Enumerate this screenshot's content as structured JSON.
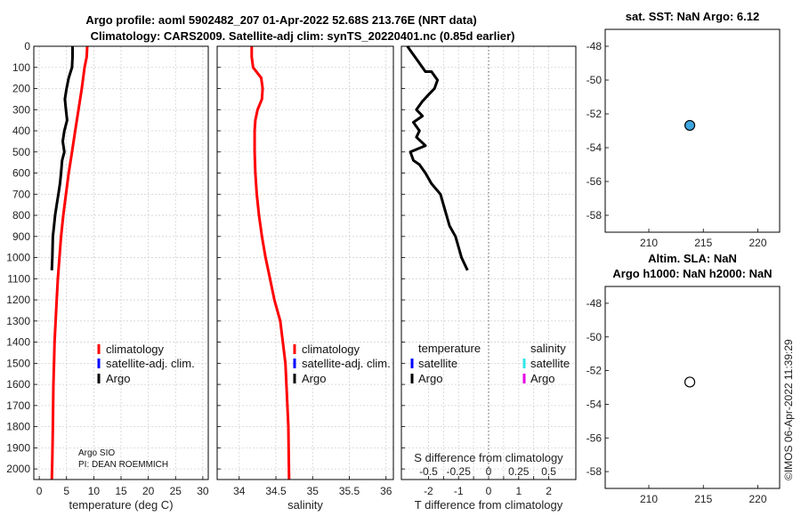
{
  "titles": {
    "line1": "Argo profile: aoml 5902482_207 01-Apr-2022 52.68S 213.76E (NRT data)",
    "line2": "Climatology: CARS2009. Satellite-adj clim: synTS_20220401.nc (0.85d earlier)",
    "sst": "sat. SST: NaN Argo: 6.12",
    "altim1": "Altim. SLA: NaN",
    "altim2": "Argo h1000: NaN h2000: NaN"
  },
  "credits": {
    "argo_center": "Argo SIO",
    "pi": "PI: DEAN ROEMMICH",
    "imos": "©IMOS 06-Apr-2022 11:39:29"
  },
  "legend": {
    "climatology": "climatology",
    "satellite_adj": "satellite-adj. clim.",
    "argo": "Argo",
    "temperature": "temperature",
    "salinity": "salinity",
    "satellite": "satellite"
  },
  "colors": {
    "climatology": "#ff0000",
    "satellite": "#0000ff",
    "argo": "#000000",
    "satellite_t": "#0000ff",
    "satellite_s": "#33e6e6",
    "argo_s": "#e600e6",
    "marker_sst": "#3da5e0"
  },
  "chart_data": [
    {
      "type": "line",
      "xlabel": "temperature (deg C)",
      "ylim": [
        2050,
        0
      ],
      "xlim": [
        -1,
        31
      ],
      "xticks": [
        0,
        5,
        10,
        15,
        20,
        25,
        30
      ],
      "yticks": [
        0,
        100,
        200,
        300,
        400,
        500,
        600,
        700,
        800,
        900,
        1000,
        1100,
        1200,
        1300,
        1400,
        1500,
        1600,
        1700,
        1800,
        1900,
        2000
      ],
      "grid": true,
      "series": [
        {
          "name": "climatology",
          "x": [
            8.8,
            8.7,
            8.3,
            7.8,
            7.2,
            6.6,
            6.0,
            5.4,
            4.9,
            4.4,
            4.0,
            3.7,
            3.4,
            3.2,
            3.0,
            2.8,
            2.7,
            2.6,
            2.5,
            2.4,
            2.3
          ],
          "y": [
            0,
            50,
            100,
            200,
            300,
            400,
            500,
            600,
            700,
            800,
            900,
            1000,
            1100,
            1200,
            1300,
            1400,
            1500,
            1600,
            1800,
            1950,
            2050
          ]
        },
        {
          "name": "Argo",
          "x": [
            6.1,
            6.1,
            6.0,
            5.4,
            5.0,
            4.7,
            4.9,
            5.1,
            4.6,
            4.3,
            4.6,
            4.2,
            4.0,
            3.8,
            3.5,
            3.2,
            2.9,
            2.7,
            2.5,
            2.4,
            2.3
          ],
          "y": [
            0,
            50,
            100,
            150,
            200,
            250,
            300,
            350,
            400,
            450,
            500,
            540,
            600,
            650,
            700,
            750,
            800,
            850,
            900,
            1000,
            1060
          ]
        }
      ]
    },
    {
      "type": "line",
      "xlabel": "salinity",
      "ylim": [
        2050,
        0
      ],
      "xlim": [
        33.7,
        36.1
      ],
      "xticks": [
        34,
        34.5,
        35,
        35.5,
        36
      ],
      "grid": true,
      "series": [
        {
          "name": "climatology",
          "x": [
            34.17,
            34.17,
            34.19,
            34.3,
            34.32,
            34.31,
            34.25,
            34.22,
            34.21,
            34.21,
            34.22,
            34.24,
            34.27,
            34.31,
            34.36,
            34.42,
            34.48,
            34.56,
            34.63,
            34.67,
            34.68
          ],
          "y": [
            0,
            50,
            100,
            150,
            200,
            250,
            300,
            350,
            400,
            500,
            600,
            700,
            800,
            900,
            1000,
            1100,
            1200,
            1300,
            1500,
            1800,
            2050
          ]
        }
      ]
    },
    {
      "type": "line",
      "xlabel": "T difference from climatology",
      "title": "S difference from climatology",
      "ylim": [
        2050,
        0
      ],
      "xlim": [
        -2.9,
        2.9
      ],
      "xticks": [
        -2,
        -1.5,
        -1,
        -0.5,
        0,
        0.5,
        1,
        1.5,
        2
      ],
      "xticklabels": [
        "-2",
        "",
        "-1",
        "",
        "0",
        "",
        "1",
        "",
        "2"
      ],
      "sticks": [
        "-0.5",
        "-0.25",
        "0",
        "0.25",
        "0.5"
      ],
      "grid": true,
      "series": [
        {
          "name": "Argo",
          "x": [
            -2.7,
            -2.6,
            -2.4,
            -2.1,
            -1.9,
            -1.7,
            -1.8,
            -2.0,
            -2.2,
            -2.4,
            -2.2,
            -2.5,
            -2.3,
            -2.4,
            -2.1,
            -2.6,
            -2.5,
            -2.3,
            -2.1,
            -1.9,
            -1.6,
            -1.5,
            -1.4,
            -1.3,
            -1.1,
            -0.9,
            -0.7
          ],
          "y": [
            0,
            20,
            60,
            120,
            120,
            160,
            200,
            230,
            260,
            300,
            330,
            360,
            400,
            430,
            470,
            500,
            540,
            560,
            600,
            650,
            700,
            750,
            800,
            850,
            900,
            1000,
            1060
          ]
        }
      ]
    },
    {
      "type": "scatter",
      "title": "sat. SST: NaN Argo: 6.12",
      "xlim": [
        206,
        222
      ],
      "ylim": [
        -59,
        -47
      ],
      "xticks": [
        210,
        215,
        220
      ],
      "yticks": [
        -48,
        -50,
        -52,
        -54,
        -56,
        -58
      ],
      "series": [
        {
          "x": [
            213.76
          ],
          "y": [
            -52.68
          ]
        }
      ]
    },
    {
      "type": "scatter",
      "title": "Altim. SLA: NaN",
      "xlim": [
        206,
        222
      ],
      "ylim": [
        -59,
        -47
      ],
      "xticks": [
        210,
        215,
        220
      ],
      "yticks": [
        -48,
        -50,
        -52,
        -54,
        -56,
        -58
      ],
      "series": [
        {
          "x": [
            213.76
          ],
          "y": [
            -52.68
          ]
        }
      ]
    }
  ]
}
